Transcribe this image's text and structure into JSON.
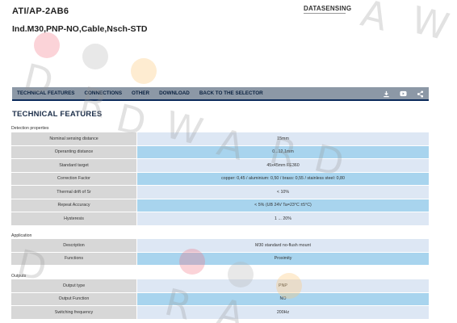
{
  "header": {
    "product_code": "ATI/AP-2AB6",
    "product_desc": "Ind.M30,PNP-NO,Cable,Nsch-STD",
    "brand": "DATASENSING"
  },
  "nav": {
    "items": [
      "TECHNICAL FEATURES",
      "CONNECTIONS",
      "OTHER",
      "DOWNLOAD",
      "BACK TO THE SELECTOR"
    ],
    "icons": [
      "download-icon",
      "video-icon",
      "share-icon"
    ]
  },
  "section_title": "TECHNICAL FEATURES",
  "groups": {
    "detection": {
      "title": "Detection properties",
      "rows": [
        {
          "label": "Nominal sensing distance",
          "value": "15mm"
        },
        {
          "label": "Operanting distance",
          "value": "0...12,1mm"
        },
        {
          "label": "Standard target",
          "value": "45x45mm FE360"
        },
        {
          "label": "Correction Factor",
          "value": "copper: 0,45 / aluminium: 0,50 / brass: 0,55 / stainless steel: 0,80"
        },
        {
          "label": "Thermal drift of Sr",
          "value": "< 10%"
        },
        {
          "label": "Repeat Accuracy",
          "value": "< 5% (UB 24V Ta=23°C ±5°C)"
        },
        {
          "label": "Hysteresis",
          "value": "1 ... 20%"
        }
      ]
    },
    "application": {
      "title": "Application",
      "rows": [
        {
          "label": "Description",
          "value": "M30 standard no-flush mount"
        },
        {
          "label": "Functions",
          "value": "Proximity"
        }
      ]
    },
    "outputs": {
      "title": "Outputs",
      "rows": [
        {
          "label": "Output type",
          "value": "PNP"
        },
        {
          "label": "Output Function",
          "value": "NO"
        },
        {
          "label": "Switching frequency",
          "value": "200Hz"
        }
      ]
    }
  },
  "watermark": {
    "letters": [
      "D",
      "W",
      "R",
      "A",
      "D",
      "W",
      "A",
      "R",
      "D",
      "D",
      "R",
      "A"
    ],
    "colors": [
      "#f26d7d",
      "#c8c8c8",
      "#fbc97a"
    ]
  }
}
